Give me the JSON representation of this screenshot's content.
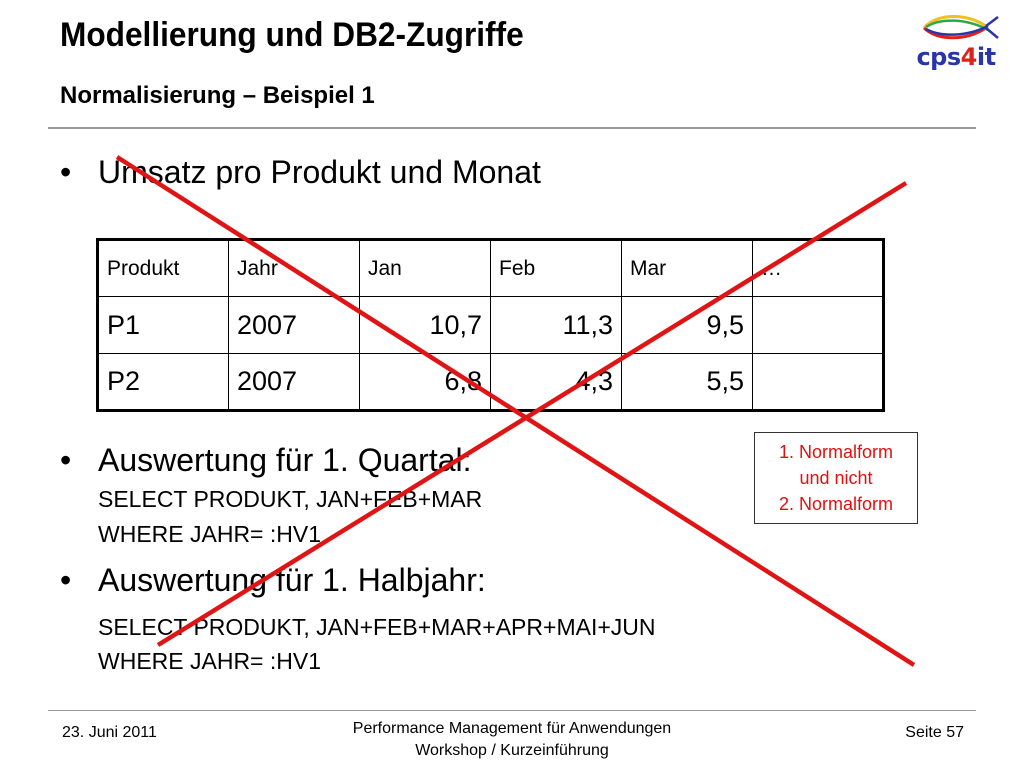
{
  "header": {
    "title": "Modellierung und DB2-Zugriffe",
    "subtitle": "Normalisierung – Beispiel 1",
    "logo": {
      "text_main": "cps",
      "text_number": "4",
      "text_tail": "it",
      "icon": "fish-logo-icon",
      "colors": {
        "blue": "#2a36a8",
        "red": "#e0201b",
        "green": "#2aa84a",
        "yellow": "#f0c020"
      }
    }
  },
  "content": {
    "bullet_symbol": "•",
    "bullets": [
      {
        "text": "Umsatz pro Produkt und Monat"
      },
      {
        "text": "Auswertung für 1. Quartal:",
        "sql": [
          "SELECT PRODUKT,  JAN+FEB+MAR",
          "WHERE JAHR= :HV1"
        ]
      },
      {
        "text": "Auswertung für 1. Halbjahr:",
        "sql": [
          "SELECT PRODUKT,  JAN+FEB+MAR+APR+MAI+JUN",
          "WHERE JAHR= :HV1"
        ]
      }
    ],
    "table": {
      "headers": [
        "Produkt",
        "Jahr",
        "Jan",
        "Feb",
        "Mar",
        "…"
      ],
      "rows": [
        [
          "P1",
          "2007",
          "10,7",
          "11,3",
          "9,5",
          ""
        ],
        [
          "P2",
          "2007",
          "6,8",
          "4,3",
          "5,5",
          ""
        ]
      ]
    },
    "note": {
      "lines": [
        "1. Normalform",
        "und nicht",
        "2. Normalform"
      ],
      "color": "#e01010"
    },
    "cross_color": "#e01414"
  },
  "footer": {
    "date": "23. Juni 2011",
    "center_line1": "Performance Management für Anwendungen",
    "center_line2": "Workshop / Kurzeinführung",
    "page": "Seite 57"
  }
}
